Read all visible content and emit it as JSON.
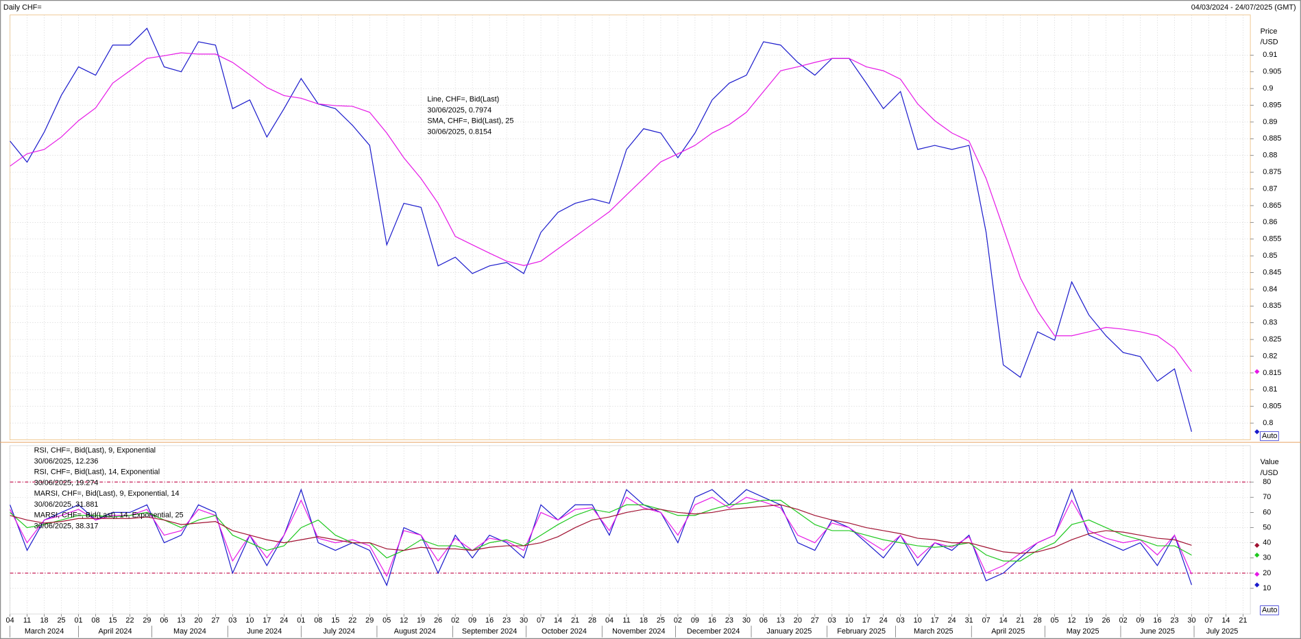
{
  "header": {
    "title": "Daily CHF=",
    "range": "04/03/2024 - 24/07/2025 (GMT)"
  },
  "chart_data": [
    {
      "type": "line",
      "y_label": "Price",
      "y_unit": "/USD",
      "auto_label": "Auto",
      "grid": true,
      "xlim": [
        "2024-03-04",
        "2025-07-24"
      ],
      "ylim": [
        0.795,
        0.922
      ],
      "yticks": [
        0.8,
        0.805,
        0.81,
        0.815,
        0.82,
        0.825,
        0.83,
        0.835,
        0.84,
        0.845,
        0.85,
        0.855,
        0.86,
        0.865,
        0.87,
        0.875,
        0.88,
        0.885,
        0.89,
        0.895,
        0.9,
        0.905,
        0.91
      ],
      "x": [
        "2024-03-04",
        "2024-03-11",
        "2024-03-18",
        "2024-03-25",
        "2024-04-01",
        "2024-04-08",
        "2024-04-15",
        "2024-04-22",
        "2024-04-29",
        "2024-05-06",
        "2024-05-13",
        "2024-05-20",
        "2024-05-27",
        "2024-06-03",
        "2024-06-10",
        "2024-06-17",
        "2024-06-24",
        "2024-07-01",
        "2024-07-08",
        "2024-07-15",
        "2024-07-22",
        "2024-07-29",
        "2024-08-05",
        "2024-08-12",
        "2024-08-19",
        "2024-08-26",
        "2024-09-02",
        "2024-09-09",
        "2024-09-16",
        "2024-09-23",
        "2024-09-30",
        "2024-10-07",
        "2024-10-14",
        "2024-10-21",
        "2024-10-28",
        "2024-11-04",
        "2024-11-11",
        "2024-11-18",
        "2024-11-25",
        "2024-12-02",
        "2024-12-09",
        "2024-12-16",
        "2024-12-23",
        "2024-12-30",
        "2025-01-06",
        "2025-01-13",
        "2025-01-20",
        "2025-01-27",
        "2025-02-03",
        "2025-02-10",
        "2025-02-17",
        "2025-02-24",
        "2025-03-03",
        "2025-03-10",
        "2025-03-17",
        "2025-03-24",
        "2025-03-31",
        "2025-04-07",
        "2025-04-14",
        "2025-04-21",
        "2025-04-28",
        "2025-05-05",
        "2025-05-12",
        "2025-05-19",
        "2025-05-26",
        "2025-06-02",
        "2025-06-09",
        "2025-06-16",
        "2025-06-23",
        "2025-06-30"
      ],
      "series": [
        {
          "name": "Line, CHF=, Bid(Last)",
          "last_label": "30/06/2025, 0.7974",
          "color": "#1a1acc",
          "values": [
            0.8843,
            0.878,
            0.887,
            0.898,
            0.9065,
            0.904,
            0.913,
            0.913,
            0.918,
            0.9065,
            0.905,
            0.914,
            0.913,
            0.894,
            0.8966,
            0.8855,
            0.894,
            0.903,
            0.8954,
            0.894,
            0.889,
            0.883,
            0.8533,
            0.8657,
            0.8645,
            0.847,
            0.8496,
            0.8447,
            0.847,
            0.848,
            0.8447,
            0.857,
            0.863,
            0.8657,
            0.867,
            0.8657,
            0.8818,
            0.888,
            0.8867,
            0.8793,
            0.8867,
            0.8966,
            0.9016,
            0.904,
            0.914,
            0.913,
            0.9078,
            0.904,
            0.909,
            0.909,
            0.9016,
            0.894,
            0.8991,
            0.8818,
            0.883,
            0.8818,
            0.883,
            0.857,
            0.8174,
            0.8137,
            0.8273,
            0.8248,
            0.8422,
            0.8323,
            0.8261,
            0.8211,
            0.8199,
            0.8125,
            0.8162,
            0.7974
          ]
        },
        {
          "name": "SMA, CHF=, Bid(Last),  25",
          "last_label": "30/06/2025, 0.8154",
          "color": "#e619e6",
          "values": [
            0.8768,
            0.8805,
            0.8818,
            0.8855,
            0.8904,
            0.8942,
            0.9016,
            0.9053,
            0.909,
            0.9098,
            0.9107,
            0.9103,
            0.9103,
            0.9078,
            0.9041,
            0.9003,
            0.8979,
            0.8971,
            0.8954,
            0.8949,
            0.8947,
            0.8929,
            0.8867,
            0.8793,
            0.8731,
            0.8657,
            0.8558,
            0.8533,
            0.8508,
            0.8484,
            0.8471,
            0.8484,
            0.8521,
            0.8558,
            0.8595,
            0.8632,
            0.8682,
            0.8731,
            0.8781,
            0.8805,
            0.883,
            0.8867,
            0.8892,
            0.8929,
            0.8991,
            0.9053,
            0.9065,
            0.9078,
            0.909,
            0.909,
            0.9065,
            0.9053,
            0.9028,
            0.8954,
            0.8904,
            0.8867,
            0.8843,
            0.8731,
            0.8583,
            0.8434,
            0.8335,
            0.8261,
            0.8261,
            0.8273,
            0.8286,
            0.8281,
            0.8273,
            0.8261,
            0.8224,
            0.8154
          ]
        }
      ]
    },
    {
      "type": "line",
      "y_label": "Value",
      "y_unit": "/USD",
      "auto_label": "Auto",
      "grid": true,
      "xlim": [
        "2024-03-04",
        "2025-07-24"
      ],
      "ylim": [
        -7,
        104
      ],
      "yticks": [
        10,
        20,
        30,
        40,
        50,
        60,
        70,
        80
      ],
      "reference_lines": [
        20,
        80
      ],
      "reference_color": "#c00040",
      "xticks": [
        {
          "value": "2024-03-04",
          "label": "04"
        },
        {
          "value": "2024-03-11",
          "label": "11"
        },
        {
          "value": "2024-03-18",
          "label": "18"
        },
        {
          "value": "2024-03-25",
          "label": "25"
        },
        {
          "value": "2024-04-01",
          "label": "01"
        },
        {
          "value": "2024-04-08",
          "label": "08"
        },
        {
          "value": "2024-04-15",
          "label": "15"
        },
        {
          "value": "2024-04-22",
          "label": "22"
        },
        {
          "value": "2024-04-29",
          "label": "29"
        },
        {
          "value": "2024-05-06",
          "label": "06"
        },
        {
          "value": "2024-05-13",
          "label": "13"
        },
        {
          "value": "2024-05-20",
          "label": "20"
        },
        {
          "value": "2024-05-27",
          "label": "27"
        },
        {
          "value": "2024-06-03",
          "label": "03"
        },
        {
          "value": "2024-06-10",
          "label": "10"
        },
        {
          "value": "2024-06-17",
          "label": "17"
        },
        {
          "value": "2024-06-24",
          "label": "24"
        },
        {
          "value": "2024-07-01",
          "label": "01"
        },
        {
          "value": "2024-07-08",
          "label": "08"
        },
        {
          "value": "2024-07-15",
          "label": "15"
        },
        {
          "value": "2024-07-22",
          "label": "22"
        },
        {
          "value": "2024-07-29",
          "label": "29"
        },
        {
          "value": "2024-08-05",
          "label": "05"
        },
        {
          "value": "2024-08-12",
          "label": "12"
        },
        {
          "value": "2024-08-19",
          "label": "19"
        },
        {
          "value": "2024-08-26",
          "label": "26"
        },
        {
          "value": "2024-09-02",
          "label": "02"
        },
        {
          "value": "2024-09-09",
          "label": "09"
        },
        {
          "value": "2024-09-16",
          "label": "16"
        },
        {
          "value": "2024-09-23",
          "label": "23"
        },
        {
          "value": "2024-09-30",
          "label": "30"
        },
        {
          "value": "2024-10-07",
          "label": "07"
        },
        {
          "value": "2024-10-14",
          "label": "14"
        },
        {
          "value": "2024-10-21",
          "label": "21"
        },
        {
          "value": "2024-10-28",
          "label": "28"
        },
        {
          "value": "2024-11-04",
          "label": "04"
        },
        {
          "value": "2024-11-11",
          "label": "11"
        },
        {
          "value": "2024-11-18",
          "label": "18"
        },
        {
          "value": "2024-11-25",
          "label": "25"
        },
        {
          "value": "2024-12-02",
          "label": "02"
        },
        {
          "value": "2024-12-09",
          "label": "09"
        },
        {
          "value": "2024-12-16",
          "label": "16"
        },
        {
          "value": "2024-12-23",
          "label": "23"
        },
        {
          "value": "2024-12-30",
          "label": "30"
        },
        {
          "value": "2025-01-06",
          "label": "06"
        },
        {
          "value": "2025-01-13",
          "label": "13"
        },
        {
          "value": "2025-01-20",
          "label": "20"
        },
        {
          "value": "2025-01-27",
          "label": "27"
        },
        {
          "value": "2025-02-03",
          "label": "03"
        },
        {
          "value": "2025-02-10",
          "label": "10"
        },
        {
          "value": "2025-02-17",
          "label": "17"
        },
        {
          "value": "2025-02-24",
          "label": "24"
        },
        {
          "value": "2025-03-03",
          "label": "03"
        },
        {
          "value": "2025-03-10",
          "label": "10"
        },
        {
          "value": "2025-03-17",
          "label": "17"
        },
        {
          "value": "2025-03-24",
          "label": "24"
        },
        {
          "value": "2025-03-31",
          "label": "31"
        },
        {
          "value": "2025-04-07",
          "label": "07"
        },
        {
          "value": "2025-04-14",
          "label": "14"
        },
        {
          "value": "2025-04-21",
          "label": "21"
        },
        {
          "value": "2025-04-28",
          "label": "28"
        },
        {
          "value": "2025-05-05",
          "label": "05"
        },
        {
          "value": "2025-05-12",
          "label": "12"
        },
        {
          "value": "2025-05-19",
          "label": "19"
        },
        {
          "value": "2025-05-26",
          "label": "26"
        },
        {
          "value": "2025-06-02",
          "label": "02"
        },
        {
          "value": "2025-06-09",
          "label": "09"
        },
        {
          "value": "2025-06-16",
          "label": "16"
        },
        {
          "value": "2025-06-23",
          "label": "23"
        },
        {
          "value": "2025-06-30",
          "label": "30"
        },
        {
          "value": "2025-07-07",
          "label": "07"
        },
        {
          "value": "2025-07-14",
          "label": "14"
        },
        {
          "value": "2025-07-21",
          "label": "21"
        }
      ],
      "month_labels": [
        {
          "value": "2024-03",
          "label": "March 2024"
        },
        {
          "value": "2024-04",
          "label": "April 2024"
        },
        {
          "value": "2024-05",
          "label": "May 2024"
        },
        {
          "value": "2024-06",
          "label": "June 2024"
        },
        {
          "value": "2024-07",
          "label": "July 2024"
        },
        {
          "value": "2024-08",
          "label": "August 2024"
        },
        {
          "value": "2024-09",
          "label": "September 2024"
        },
        {
          "value": "2024-10",
          "label": "October 2024"
        },
        {
          "value": "2024-11",
          "label": "November 2024"
        },
        {
          "value": "2024-12",
          "label": "December 2024"
        },
        {
          "value": "2025-01",
          "label": "January 2025"
        },
        {
          "value": "2025-02",
          "label": "February 2025"
        },
        {
          "value": "2025-03",
          "label": "March 2025"
        },
        {
          "value": "2025-04",
          "label": "April 2025"
        },
        {
          "value": "2025-05",
          "label": "May 2025"
        },
        {
          "value": "2025-06",
          "label": "June 2025"
        },
        {
          "value": "2025-07",
          "label": "July 2025"
        }
      ],
      "x": [
        "2024-03-04",
        "2024-03-11",
        "2024-03-18",
        "2024-03-25",
        "2024-04-01",
        "2024-04-08",
        "2024-04-15",
        "2024-04-22",
        "2024-04-29",
        "2024-05-06",
        "2024-05-13",
        "2024-05-20",
        "2024-05-27",
        "2024-06-03",
        "2024-06-10",
        "2024-06-17",
        "2024-06-24",
        "2024-07-01",
        "2024-07-08",
        "2024-07-15",
        "2024-07-22",
        "2024-07-29",
        "2024-08-05",
        "2024-08-12",
        "2024-08-19",
        "2024-08-26",
        "2024-09-02",
        "2024-09-09",
        "2024-09-16",
        "2024-09-23",
        "2024-09-30",
        "2024-10-07",
        "2024-10-14",
        "2024-10-21",
        "2024-10-28",
        "2024-11-04",
        "2024-11-11",
        "2024-11-18",
        "2024-11-25",
        "2024-12-02",
        "2024-12-09",
        "2024-12-16",
        "2024-12-23",
        "2024-12-30",
        "2025-01-06",
        "2025-01-13",
        "2025-01-20",
        "2025-01-27",
        "2025-02-03",
        "2025-02-10",
        "2025-02-17",
        "2025-02-24",
        "2025-03-03",
        "2025-03-10",
        "2025-03-17",
        "2025-03-24",
        "2025-03-31",
        "2025-04-07",
        "2025-04-14",
        "2025-04-21",
        "2025-04-28",
        "2025-05-05",
        "2025-05-12",
        "2025-05-19",
        "2025-05-26",
        "2025-06-02",
        "2025-06-09",
        "2025-06-16",
        "2025-06-23",
        "2025-06-30"
      ],
      "series": [
        {
          "name": "RSI, CHF=, Bid(Last),  9, Exponential",
          "last_label": "30/06/2025, 12.236",
          "color": "#1a1acc",
          "values": [
            65,
            35,
            55,
            60,
            65,
            55,
            60,
            60,
            65,
            40,
            45,
            65,
            60,
            20,
            45,
            25,
            45,
            75,
            40,
            35,
            40,
            35,
            12,
            50,
            45,
            20,
            45,
            30,
            45,
            40,
            30,
            65,
            55,
            65,
            65,
            45,
            75,
            65,
            60,
            40,
            70,
            75,
            65,
            75,
            70,
            65,
            40,
            35,
            55,
            50,
            40,
            30,
            45,
            25,
            40,
            35,
            45,
            15,
            20,
            30,
            40,
            45,
            75,
            45,
            40,
            35,
            40,
            25,
            45,
            12.236
          ]
        },
        {
          "name": "RSI, CHF=, Bid(Last),  14, Exponential",
          "last_label": "30/06/2025, 19.274",
          "color": "#e619e6",
          "values": [
            62,
            40,
            55,
            58,
            62,
            55,
            58,
            58,
            62,
            45,
            48,
            62,
            58,
            28,
            45,
            30,
            45,
            68,
            43,
            40,
            42,
            38,
            18,
            48,
            45,
            28,
            43,
            35,
            43,
            41,
            35,
            60,
            55,
            62,
            63,
            48,
            70,
            63,
            60,
            45,
            65,
            70,
            63,
            70,
            67,
            63,
            45,
            40,
            53,
            50,
            42,
            35,
            45,
            30,
            40,
            37,
            44,
            20,
            25,
            33,
            40,
            45,
            68,
            48,
            43,
            40,
            42,
            32,
            45,
            19.274
          ]
        },
        {
          "name": "MARSI, CHF=, Bid(Last),  9, Exponential, 14",
          "last_label": "30/06/2025, 31.881",
          "color": "#1ec81e",
          "values": [
            60,
            50,
            52,
            55,
            58,
            58,
            57,
            58,
            60,
            55,
            50,
            55,
            58,
            45,
            40,
            35,
            38,
            50,
            55,
            45,
            40,
            40,
            30,
            35,
            42,
            38,
            38,
            35,
            40,
            42,
            38,
            45,
            52,
            58,
            62,
            60,
            65,
            65,
            62,
            58,
            58,
            62,
            65,
            66,
            68,
            68,
            60,
            52,
            48,
            48,
            45,
            42,
            40,
            38,
            37,
            38,
            40,
            32,
            28,
            28,
            35,
            40,
            52,
            55,
            50,
            45,
            42,
            38,
            38,
            31.881
          ]
        },
        {
          "name": "MARSI, CHF=, Bid(Last),  14, Exponential, 25",
          "last_label": "30/06/2025, 38.317",
          "color": "#a01030",
          "values": [
            58,
            55,
            53,
            54,
            56,
            56,
            56,
            56,
            57,
            55,
            52,
            53,
            54,
            48,
            45,
            42,
            40,
            42,
            44,
            42,
            40,
            40,
            36,
            35,
            37,
            36,
            36,
            35,
            37,
            38,
            38,
            40,
            44,
            50,
            55,
            57,
            60,
            62,
            62,
            60,
            59,
            60,
            62,
            63,
            64,
            65,
            62,
            58,
            55,
            53,
            50,
            48,
            46,
            43,
            42,
            40,
            40,
            37,
            34,
            33,
            34,
            37,
            42,
            46,
            48,
            47,
            45,
            43,
            42,
            38.317
          ]
        }
      ]
    }
  ]
}
